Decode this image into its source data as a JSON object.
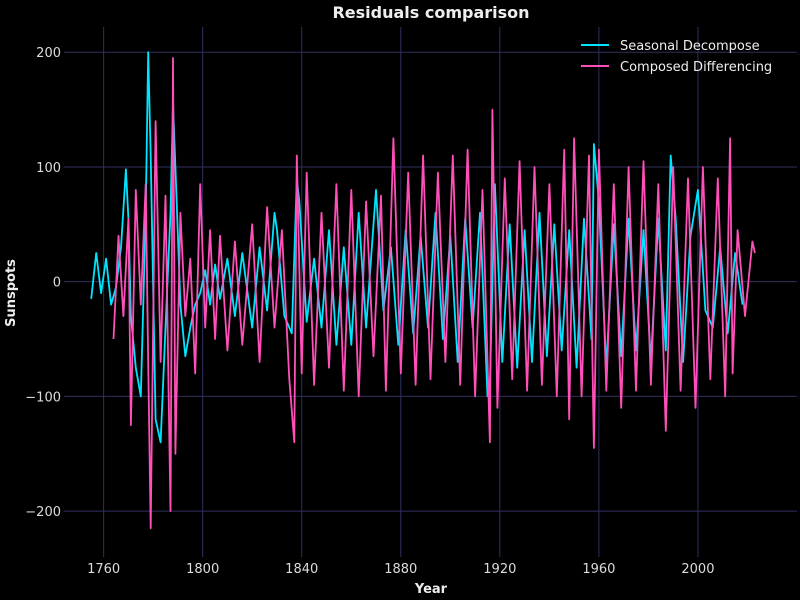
{
  "chart_data": {
    "type": "line",
    "title": "Residuals comparison",
    "xlabel": "Year",
    "ylabel": "Sunspots",
    "xlim": [
      1744,
      2040
    ],
    "ylim": [
      -240,
      222
    ],
    "xticks": [
      1760,
      1800,
      1840,
      1880,
      1920,
      1960,
      2000
    ],
    "yticks": [
      -200,
      -100,
      0,
      100,
      200
    ],
    "grid": true,
    "legend_position": "top-right",
    "background": "#000000",
    "grid_color": "#2f2f5f",
    "series": [
      {
        "name": "Seasonal Decompose",
        "color": "#00e5ff",
        "x": [
          1755,
          1757,
          1759,
          1761,
          1763,
          1765,
          1767,
          1769,
          1770,
          1771,
          1773,
          1775,
          1777,
          1778,
          1779,
          1781,
          1783,
          1785,
          1787,
          1788,
          1789,
          1791,
          1793,
          1795,
          1797,
          1799,
          1801,
          1803,
          1805,
          1807,
          1810,
          1813,
          1816,
          1820,
          1823,
          1826,
          1829,
          1830,
          1833,
          1836,
          1838,
          1839,
          1842,
          1845,
          1848,
          1851,
          1854,
          1857,
          1860,
          1863,
          1866,
          1869,
          1870,
          1873,
          1876,
          1879,
          1882,
          1885,
          1888,
          1891,
          1894,
          1897,
          1900,
          1903,
          1906,
          1909,
          1912,
          1915,
          1916,
          1918,
          1921,
          1924,
          1927,
          1930,
          1933,
          1936,
          1939,
          1942,
          1945,
          1948,
          1951,
          1954,
          1957,
          1958,
          1960,
          1963,
          1966,
          1969,
          1972,
          1975,
          1978,
          1981,
          1984,
          1987,
          1989,
          1991,
          1994,
          1997,
          2000,
          2003,
          2006,
          2009,
          2012,
          2015,
          2018
        ],
        "y": [
          -15,
          25,
          -10,
          20,
          -20,
          -5,
          30,
          98,
          55,
          -30,
          -75,
          -100,
          60,
          200,
          110,
          -120,
          -140,
          -40,
          60,
          155,
          100,
          -20,
          -65,
          -40,
          -20,
          -10,
          10,
          -20,
          15,
          -15,
          20,
          -30,
          25,
          -40,
          30,
          -25,
          60,
          45,
          -30,
          -45,
          90,
          70,
          -35,
          20,
          -40,
          45,
          -55,
          30,
          -55,
          60,
          -40,
          50,
          80,
          -25,
          30,
          -55,
          45,
          -45,
          40,
          -40,
          60,
          -50,
          40,
          -70,
          55,
          -40,
          60,
          -100,
          -90,
          85,
          -70,
          50,
          -75,
          45,
          -70,
          60,
          -65,
          50,
          -60,
          45,
          -75,
          55,
          -50,
          120,
          70,
          -75,
          50,
          -65,
          55,
          -60,
          45,
          -70,
          55,
          -60,
          110,
          55,
          -70,
          40,
          80,
          -25,
          -40,
          30,
          -45,
          25,
          -20
        ],
        "values": [
          -15,
          25,
          -10,
          20,
          -20,
          -5,
          30,
          98,
          55,
          -30,
          -75,
          -100,
          60,
          200,
          110,
          -120,
          -140,
          -40,
          60,
          155,
          100,
          -20,
          -65,
          -40,
          -20,
          -10,
          10,
          -20,
          15,
          -15,
          20,
          -30,
          25,
          -40,
          30,
          -25,
          60,
          45,
          -30,
          -45,
          90,
          70,
          -35,
          20,
          -40,
          45,
          -55,
          30,
          -55,
          60,
          -40,
          50,
          80,
          -25,
          30,
          -55,
          45,
          -45,
          40,
          -40,
          60,
          -50,
          40,
          -70,
          55,
          -40,
          60,
          -100,
          -90,
          85,
          -70,
          50,
          -75,
          45,
          -70,
          60,
          -65,
          50,
          -60,
          45,
          -75,
          55,
          -50,
          120,
          70,
          -75,
          50,
          -65,
          55,
          -60,
          45,
          -70,
          55,
          -60,
          110,
          55,
          -70,
          40,
          80,
          -25,
          -40,
          30,
          -45,
          25,
          -20
        ]
      },
      {
        "name": "Composed Differencing",
        "color": "#ff4fb8",
        "x": [
          1764,
          1766,
          1768,
          1770,
          1771,
          1773,
          1775,
          1777,
          1778,
          1779,
          1781,
          1783,
          1785,
          1787,
          1788,
          1789,
          1791,
          1793,
          1795,
          1797,
          1799,
          1801,
          1803,
          1805,
          1807,
          1810,
          1813,
          1816,
          1820,
          1823,
          1826,
          1829,
          1832,
          1835,
          1837,
          1838,
          1840,
          1842,
          1845,
          1848,
          1851,
          1854,
          1857,
          1860,
          1863,
          1866,
          1869,
          1872,
          1874,
          1877,
          1880,
          1883,
          1886,
          1889,
          1892,
          1895,
          1898,
          1901,
          1904,
          1907,
          1910,
          1913,
          1916,
          1917,
          1919,
          1922,
          1925,
          1928,
          1931,
          1934,
          1937,
          1940,
          1943,
          1946,
          1948,
          1950,
          1953,
          1956,
          1958,
          1960,
          1963,
          1966,
          1969,
          1972,
          1975,
          1978,
          1981,
          1984,
          1987,
          1990,
          1993,
          1996,
          1999,
          2002,
          2005,
          2008,
          2011,
          2013,
          2014,
          2016,
          2019,
          2022,
          2023
        ],
        "y": [
          -50,
          40,
          -30,
          55,
          -125,
          80,
          -20,
          85,
          -70,
          -215,
          140,
          -70,
          75,
          -200,
          195,
          -150,
          60,
          -30,
          20,
          -80,
          85,
          -40,
          45,
          -50,
          40,
          -60,
          35,
          -55,
          50,
          -70,
          65,
          -40,
          45,
          -85,
          -140,
          110,
          -80,
          95,
          -90,
          60,
          -75,
          85,
          -95,
          80,
          -100,
          70,
          -65,
          75,
          -95,
          125,
          -80,
          95,
          -90,
          110,
          -85,
          95,
          -70,
          110,
          -90,
          115,
          -100,
          80,
          -140,
          150,
          -110,
          90,
          -85,
          105,
          -95,
          100,
          -90,
          85,
          -100,
          115,
          -120,
          125,
          -100,
          110,
          -145,
          115,
          -95,
          85,
          -110,
          100,
          -95,
          105,
          -90,
          85,
          -130,
          100,
          -95,
          90,
          -110,
          100,
          -85,
          90,
          -100,
          125,
          -80,
          45,
          -30,
          35,
          25
        ],
        "values": [
          -50,
          40,
          -30,
          55,
          -125,
          80,
          -20,
          85,
          -70,
          -215,
          140,
          -70,
          75,
          -200,
          195,
          -150,
          60,
          -30,
          20,
          -80,
          85,
          -40,
          45,
          -50,
          40,
          -60,
          35,
          -55,
          50,
          -70,
          65,
          -40,
          45,
          -85,
          -140,
          110,
          -80,
          95,
          -90,
          60,
          -75,
          85,
          -95,
          80,
          -100,
          70,
          -65,
          75,
          -95,
          125,
          -80,
          95,
          -90,
          110,
          -85,
          95,
          -70,
          110,
          -90,
          115,
          -100,
          80,
          -140,
          150,
          -110,
          90,
          -85,
          105,
          -95,
          100,
          -90,
          85,
          -100,
          115,
          -120,
          125,
          -100,
          110,
          -145,
          115,
          -95,
          85,
          -110,
          100,
          -95,
          105,
          -90,
          85,
          -130,
          100,
          -95,
          90,
          -110,
          100,
          -85,
          90,
          -100,
          125,
          -80,
          45,
          -30,
          35,
          25
        ]
      }
    ]
  }
}
